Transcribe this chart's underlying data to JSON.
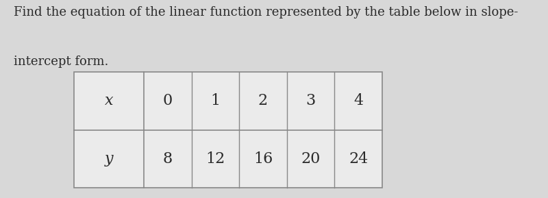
{
  "title_line1": "Find the equation of the linear function represented by the table below in slope-",
  "title_line2": "intercept form.",
  "title_fontsize": 13.0,
  "title_color": "#2a2a2a",
  "background_color": "#d8d8d8",
  "table_bg_color": "#ebebeb",
  "table_border_color": "#888888",
  "row_labels": [
    "x",
    "y"
  ],
  "x_values": [
    "0",
    "1",
    "2",
    "3",
    "4"
  ],
  "y_values": [
    "8",
    "12",
    "16",
    "20",
    "24"
  ],
  "cell_fontsize": 16,
  "label_fontsize": 16
}
